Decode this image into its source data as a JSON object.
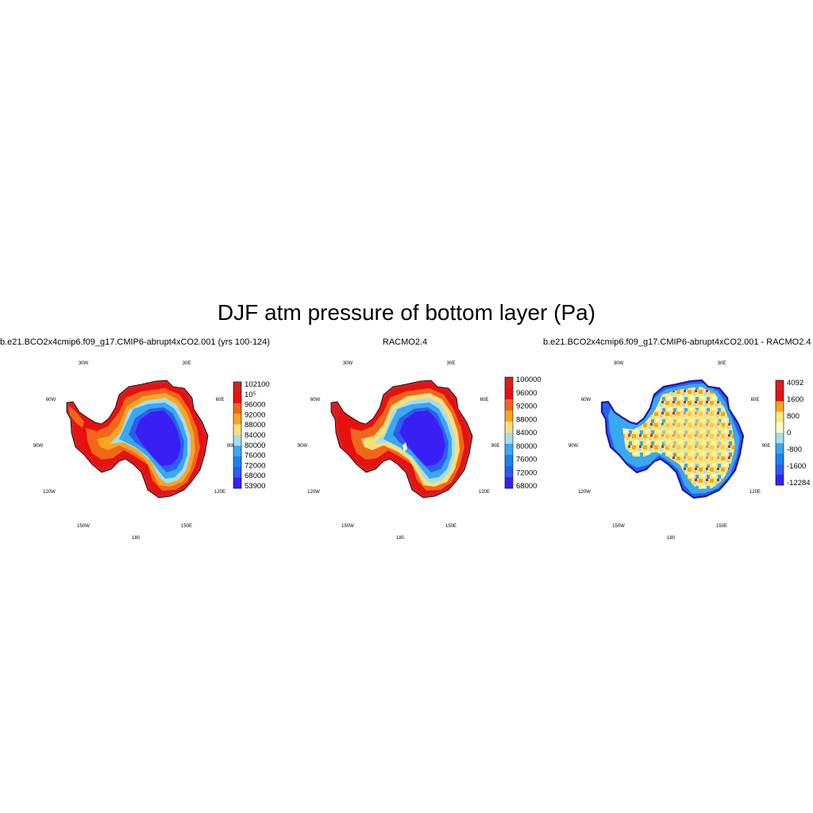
{
  "title": "DJF atm pressure of bottom layer (Pa)",
  "lon_labels": {
    "w30": "30W",
    "e30": "30E",
    "w60": "60W",
    "e60": "60E",
    "w90": "90W",
    "e90": "90E",
    "w120": "120W",
    "e120": "120E",
    "w150": "150W",
    "e150": "150E",
    "s180": "180"
  },
  "panels": [
    {
      "title": "b.e21.BCO2x4cmip6.f09_g17.CMIP6-abrupt4xCO2.001 (yrs 100-124)",
      "colorbar": {
        "colors": [
          "#d42020",
          "#e81010",
          "#f2661a",
          "#f7a520",
          "#f9e07a",
          "#a8dced",
          "#38a8ef",
          "#1d82ed",
          "#2d5cf0",
          "#3a1ff5"
        ],
        "labels": [
          "102100",
          "10⁵",
          "96000",
          "92000",
          "88000",
          "84000",
          "80000",
          "76000",
          "72000",
          "68000",
          "53900"
        ]
      }
    },
    {
      "title": "RACMO2.4",
      "colorbar": {
        "colors": [
          "#d42020",
          "#e81010",
          "#f2661a",
          "#f7a520",
          "#f9e07a",
          "#a8dced",
          "#38a8ef",
          "#1d82ed",
          "#2d5cf0",
          "#3a1ff5"
        ],
        "labels": [
          "100000",
          "96000",
          "92000",
          "88000",
          "84000",
          "80000",
          "76000",
          "72000",
          "68000"
        ]
      }
    },
    {
      "title": "b.e21.BCO2x4cmip6.f09_g17.CMIP6-abrupt4xCO2.001 - RACMO2.4",
      "colorbar": {
        "colors": [
          "#d42020",
          "#e81010",
          "#f7a520",
          "#fde87a",
          "#fffacc",
          "#a8dced",
          "#38a8ef",
          "#1d82ed",
          "#2d5cf0",
          "#3a1ff5"
        ],
        "labels": [
          "4092",
          "1600",
          "800",
          "0",
          "-800",
          "-1600",
          "-12284"
        ]
      }
    }
  ]
}
